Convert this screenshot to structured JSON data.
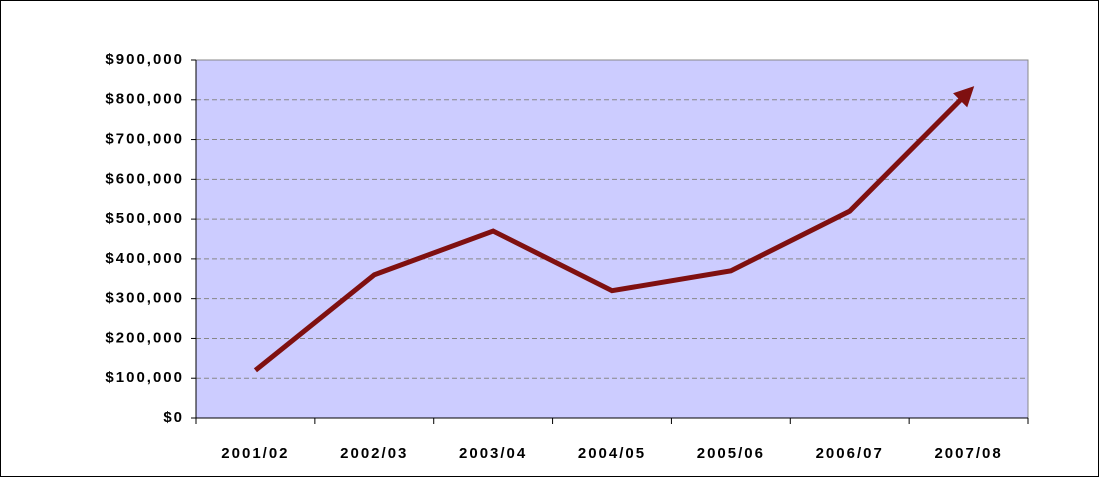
{
  "chart_data": {
    "type": "line",
    "categories": [
      "2001/02",
      "2002/03",
      "2003/04",
      "2004/05",
      "2005/06",
      "2006/07",
      "2007/08"
    ],
    "series": [
      {
        "color": "#7f1010",
        "values": [
          120000,
          360000,
          470000,
          320000,
          370000,
          520000,
          820000
        ]
      }
    ],
    "ylim": [
      0,
      900000
    ],
    "yticks": [
      {
        "value": 0,
        "label": "$0"
      },
      {
        "value": 100000,
        "label": "$100,000"
      },
      {
        "value": 200000,
        "label": "$200,000"
      },
      {
        "value": 300000,
        "label": "$300,000"
      },
      {
        "value": 400000,
        "label": "$400,000"
      },
      {
        "value": 500000,
        "label": "$500,000"
      },
      {
        "value": 600000,
        "label": "$600,000"
      },
      {
        "value": 700000,
        "label": "$700,000"
      },
      {
        "value": 800000,
        "label": "$800,000"
      },
      {
        "value": 900000,
        "label": "$900,000"
      }
    ],
    "grid": true,
    "background": "#ccccff"
  }
}
